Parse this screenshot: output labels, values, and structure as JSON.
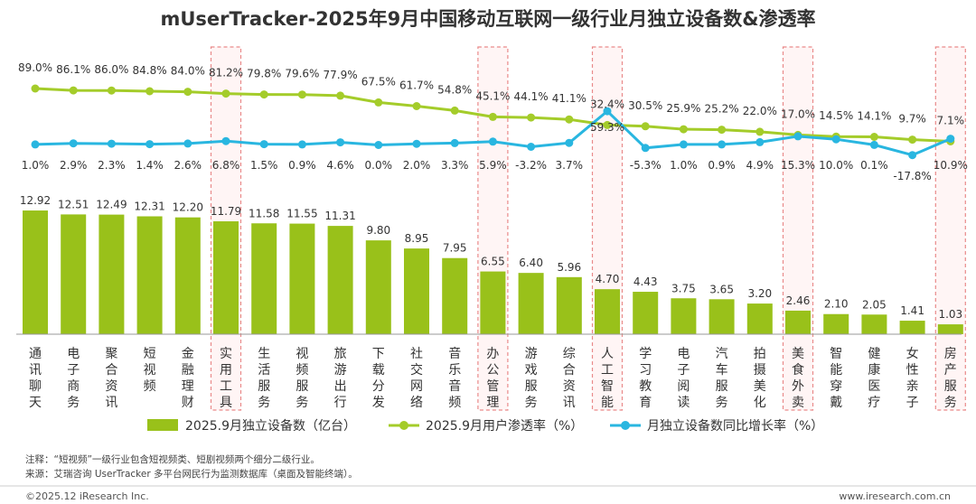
{
  "chart_data": {
    "type": "bar",
    "title": "mUserTracker-2025年9月中国移动互联网一级行业月独立设备数&渗透率",
    "categories": [
      "通讯聊天",
      "电子商务",
      "聚合资讯",
      "短视频",
      "金融理财",
      "实用工具",
      "生活服务",
      "视频服务",
      "旅游出行",
      "下载分发",
      "社交网络",
      "音乐音频",
      "办公管理",
      "游戏服务",
      "综合资讯",
      "人工智能",
      "学习教育",
      "电子阅读",
      "汽车服务",
      "拍摄美化",
      "美食外卖",
      "智能穿戴",
      "健康医疗",
      "女性亲子",
      "房产服务"
    ],
    "highlighted": [
      "实用工具",
      "办公管理",
      "人工智能",
      "美食外卖",
      "房产服务"
    ],
    "series": [
      {
        "name": "2025.9月独立设备数（亿台）",
        "kind": "bar",
        "color": "#99c11a",
        "values": [
          12.92,
          12.51,
          12.49,
          12.31,
          12.2,
          11.79,
          11.58,
          11.55,
          11.31,
          9.8,
          8.95,
          7.95,
          6.55,
          6.4,
          5.96,
          4.7,
          4.43,
          3.75,
          3.65,
          3.2,
          2.46,
          2.1,
          2.05,
          1.41,
          1.03
        ],
        "labels": [
          "12.92",
          "12.51",
          "12.49",
          "12.31",
          "12.20",
          "11.79",
          "11.58",
          "11.55",
          "11.31",
          "9.80",
          "8.95",
          "7.95",
          "6.55",
          "6.40",
          "5.96",
          "4.70",
          "4.43",
          "3.75",
          "3.65",
          "3.20",
          "2.46",
          "2.10",
          "2.05",
          "1.41",
          "1.03"
        ]
      },
      {
        "name": "2025.9月用户渗透率（%）",
        "kind": "line",
        "color": "#a4cc2a",
        "values": [
          89.0,
          86.1,
          86.0,
          84.8,
          84.0,
          81.2,
          79.8,
          79.6,
          77.9,
          67.5,
          61.7,
          54.8,
          45.1,
          44.1,
          41.1,
          32.4,
          30.5,
          25.9,
          25.2,
          22.0,
          17.0,
          14.5,
          14.1,
          9.7,
          7.1
        ],
        "labels": [
          "89.0%",
          "86.1%",
          "86.0%",
          "84.8%",
          "84.0%",
          "81.2%",
          "79.8%",
          "79.6%",
          "77.9%",
          "67.5%",
          "61.7%",
          "54.8%",
          "45.1%",
          "44.1%",
          "41.1%",
          "32.4%",
          "30.5%",
          "25.9%",
          "25.2%",
          "22.0%",
          "17.0%",
          "14.5%",
          "14.1%",
          "9.7%",
          "7.1%"
        ]
      },
      {
        "name": "月独立设备数同比增长率（%）",
        "kind": "line",
        "color": "#29b6e0",
        "values": [
          1.0,
          2.9,
          2.3,
          1.4,
          2.6,
          6.8,
          1.5,
          0.9,
          4.6,
          0.0,
          2.0,
          3.3,
          5.9,
          -3.2,
          3.7,
          59.3,
          -5.3,
          1.0,
          0.9,
          4.9,
          15.3,
          10.0,
          0.1,
          -17.8,
          10.9
        ],
        "labels": [
          "1.0%",
          "2.9%",
          "2.3%",
          "1.4%",
          "2.6%",
          "6.8%",
          "1.5%",
          "0.9%",
          "4.6%",
          "0.0%",
          "2.0%",
          "3.3%",
          "5.9%",
          "-3.2%",
          "3.7%",
          "59.3%",
          "-5.3%",
          "1.0%",
          "0.9%",
          "4.9%",
          "15.3%",
          "10.0%",
          "0.1%",
          "-17.8%",
          "10.9%"
        ]
      }
    ],
    "notes": [
      "注释：“短视频”一级行业包含短视频类、短剧视频两个细分二级行业。",
      "来源：艾瑞咨询 UserTracker 多平台网民行为监测数据库（桌面及智能终端）。"
    ]
  },
  "footer": {
    "left": "©2025.12 iResearch Inc.",
    "right": "www.iresearch.com.cn"
  }
}
